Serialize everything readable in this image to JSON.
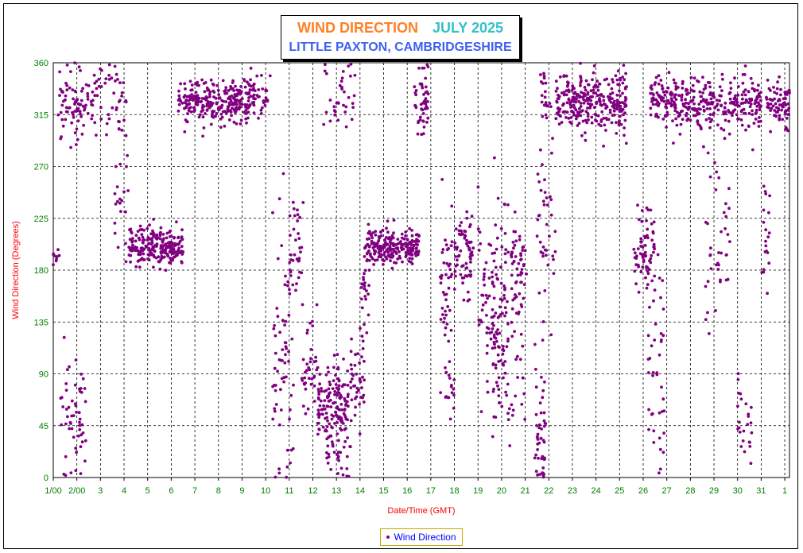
{
  "chart_data": {
    "type": "scatter",
    "title": "WIND DIRECTION",
    "month_label": "JULY 2025",
    "subtitle": "LITTLE PAXTON, CAMBRIDGESHIRE",
    "xlabel": "Date/Time (GMT)",
    "ylabel": "Wind Direction (Degrees)",
    "ylim": [
      0,
      360
    ],
    "y_ticks": [
      "0",
      "45",
      "90",
      "135",
      "180",
      "225",
      "270",
      "315",
      "360"
    ],
    "x_ticks": [
      "1/00",
      "2/00",
      "3",
      "4",
      "5",
      "6",
      "7",
      "8",
      "9",
      "10",
      "11",
      "12",
      "13",
      "14",
      "15",
      "16",
      "17",
      "18",
      "19",
      "20",
      "21",
      "22",
      "23",
      "24",
      "25",
      "26",
      "27",
      "28",
      "29",
      "30",
      "31",
      "1"
    ],
    "xlim_days": [
      1,
      32.2
    ],
    "grid": true,
    "legend_position": "bottom-center",
    "series": [
      {
        "name": "Wind Direction",
        "color": "#800080",
        "clusters": [
          {
            "day_from": 1.0,
            "day_to": 1.3,
            "center": 192,
            "spread": 3,
            "count": 10
          },
          {
            "day_from": 1.2,
            "day_to": 2.0,
            "center": 330,
            "spread": 18,
            "count": 40
          },
          {
            "day_from": 1.3,
            "day_to": 2.4,
            "center": 50,
            "spread": 28,
            "count": 55
          },
          {
            "day_from": 1.9,
            "day_to": 2.9,
            "center": 325,
            "spread": 12,
            "count": 50
          },
          {
            "day_from": 2.9,
            "day_to": 4.1,
            "center": 325,
            "spread": 15,
            "count": 40
          },
          {
            "day_from": 3.6,
            "day_to": 4.2,
            "center": 240,
            "spread": 30,
            "count": 20
          },
          {
            "day_from": 4.2,
            "day_to": 6.5,
            "center": 200,
            "spread": 8,
            "count": 230
          },
          {
            "day_from": 6.3,
            "day_to": 9.3,
            "center": 325,
            "spread": 10,
            "count": 260
          },
          {
            "day_from": 9.2,
            "day_to": 10.2,
            "center": 330,
            "spread": 10,
            "count": 50
          },
          {
            "day_from": 10.3,
            "day_to": 11.2,
            "center": 110,
            "spread": 60,
            "count": 70
          },
          {
            "day_from": 11.0,
            "day_to": 11.6,
            "center": 200,
            "spread": 20,
            "count": 30
          },
          {
            "day_from": 11.5,
            "day_to": 12.3,
            "center": 100,
            "spread": 25,
            "count": 40
          },
          {
            "day_from": 12.2,
            "day_to": 13.5,
            "center": 65,
            "spread": 15,
            "count": 130
          },
          {
            "day_from": 12.5,
            "day_to": 13.7,
            "center": 25,
            "spread": 15,
            "count": 40
          },
          {
            "day_from": 12.4,
            "day_to": 13.8,
            "center": 335,
            "spread": 20,
            "count": 35
          },
          {
            "day_from": 13.6,
            "day_to": 14.2,
            "center": 85,
            "spread": 20,
            "count": 40
          },
          {
            "day_from": 14.0,
            "day_to": 14.4,
            "center": 160,
            "spread": 30,
            "count": 25
          },
          {
            "day_from": 14.2,
            "day_to": 16.5,
            "center": 200,
            "spread": 8,
            "count": 220
          },
          {
            "day_from": 16.3,
            "day_to": 16.9,
            "center": 325,
            "spread": 12,
            "count": 50
          },
          {
            "day_from": 17.4,
            "day_to": 17.9,
            "center": 160,
            "spread": 35,
            "count": 45
          },
          {
            "day_from": 17.4,
            "day_to": 18.0,
            "center": 75,
            "spread": 15,
            "count": 15
          },
          {
            "day_from": 18.0,
            "day_to": 18.8,
            "center": 195,
            "spread": 20,
            "count": 70
          },
          {
            "day_from": 19.0,
            "day_to": 20.3,
            "center": 160,
            "spread": 45,
            "count": 90
          },
          {
            "day_from": 19.6,
            "day_to": 21.0,
            "center": 120,
            "spread": 45,
            "count": 90
          },
          {
            "day_from": 20.4,
            "day_to": 21.1,
            "center": 190,
            "spread": 15,
            "count": 40
          },
          {
            "day_from": 21.4,
            "day_to": 21.9,
            "center": 40,
            "spread": 35,
            "count": 50
          },
          {
            "day_from": 21.5,
            "day_to": 22.3,
            "center": 220,
            "spread": 40,
            "count": 40
          },
          {
            "day_from": 21.6,
            "day_to": 22.1,
            "center": 335,
            "spread": 15,
            "count": 20
          },
          {
            "day_from": 22.3,
            "day_to": 25.3,
            "center": 325,
            "spread": 12,
            "count": 290
          },
          {
            "day_from": 25.6,
            "day_to": 26.5,
            "center": 200,
            "spread": 18,
            "count": 70
          },
          {
            "day_from": 26.2,
            "day_to": 26.9,
            "center": 90,
            "spread": 55,
            "count": 40
          },
          {
            "day_from": 26.3,
            "day_to": 29.5,
            "center": 325,
            "spread": 12,
            "count": 240
          },
          {
            "day_from": 28.5,
            "day_to": 29.7,
            "center": 210,
            "spread": 40,
            "count": 40
          },
          {
            "day_from": 29.6,
            "day_to": 31.0,
            "center": 325,
            "spread": 12,
            "count": 110
          },
          {
            "day_from": 30.0,
            "day_to": 30.6,
            "center": 40,
            "spread": 30,
            "count": 25
          },
          {
            "day_from": 31.0,
            "day_to": 31.4,
            "center": 200,
            "spread": 30,
            "count": 20
          },
          {
            "day_from": 31.2,
            "day_to": 32.2,
            "center": 325,
            "spread": 10,
            "count": 80
          }
        ]
      }
    ]
  },
  "legend": {
    "label": "Wind Direction"
  }
}
